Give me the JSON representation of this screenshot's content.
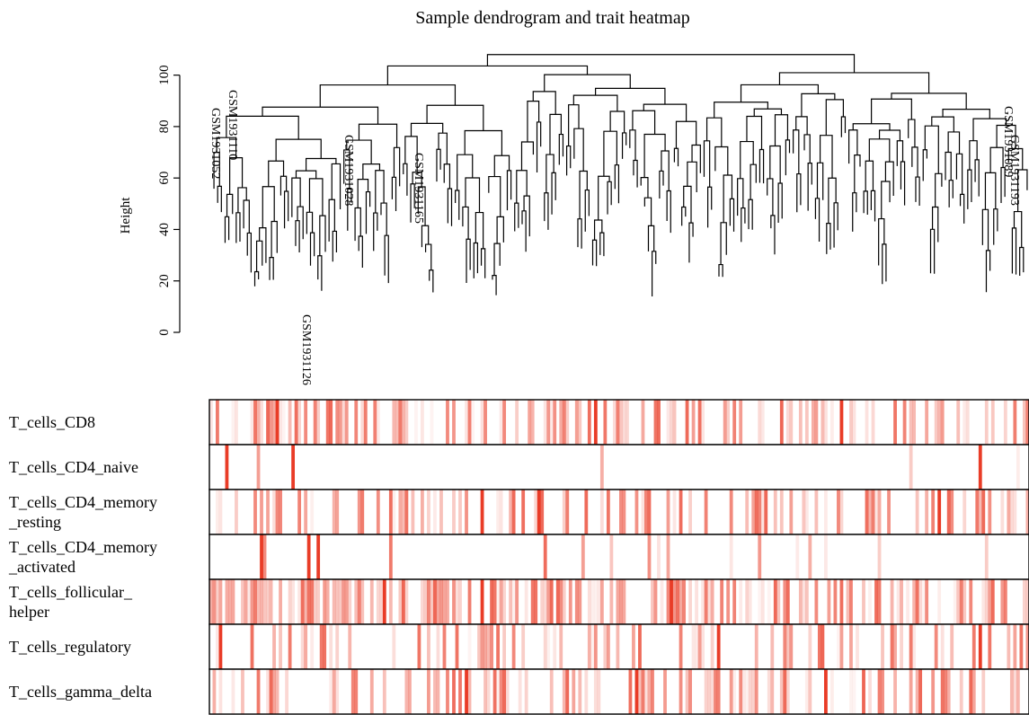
{
  "chart_data": {
    "type": "heatmap",
    "title": "Sample dendrogram and trait heatmap",
    "ylabel": "Height",
    "ylim": [
      0,
      110
    ],
    "yticks": [
      0,
      20,
      40,
      60,
      80,
      100
    ],
    "heatmap_color": "#e8321b",
    "sample_labels": [
      "GSM1931126",
      "GSM1931165",
      "GSM1931028",
      "GSM1931089",
      "GSM1931193",
      "GSM1931110",
      "GSM1931052"
    ],
    "traits": [
      {
        "label": [
          "T_cells_CD8"
        ],
        "density": 0.55,
        "spikes": [
          0.47,
          0.77,
          0.08
        ]
      },
      {
        "label": [
          "T_cells_CD4_naive"
        ],
        "density": 0.02,
        "spikes": [
          0.02,
          0.1,
          0.94
        ]
      },
      {
        "label": [
          "T_cells_CD4_memory",
          "_resting"
        ],
        "density": 0.45,
        "spikes": [
          0.33,
          0.4,
          0.89
        ]
      },
      {
        "label": [
          "T_cells_CD4_memory",
          "_activated"
        ],
        "density": 0.08,
        "spikes": [
          0.06,
          0.12,
          0.13
        ]
      },
      {
        "label": [
          "T_cells_follicular_",
          "helper"
        ],
        "density": 0.65,
        "spikes": [
          0.21,
          0.33,
          0.56
        ]
      },
      {
        "label": [
          "T_cells_regulatory"
        ],
        "density": 0.35,
        "spikes": [
          0.94,
          0.01,
          0.62
        ]
      },
      {
        "label": [
          "T_cells_gamma_delta"
        ],
        "density": 0.38,
        "spikes": [
          0.75,
          0.52,
          0.31
        ]
      }
    ]
  }
}
